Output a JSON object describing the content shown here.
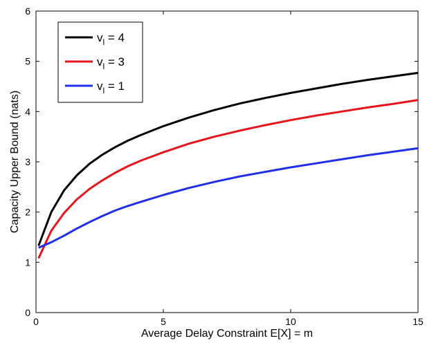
{
  "chart_data": {
    "type": "line",
    "title": "",
    "xlabel": "Average Delay Constraint E[X] = m",
    "ylabel": "Capacity Upper Bound (nats)",
    "xlim": [
      0,
      15
    ],
    "ylim": [
      0,
      6
    ],
    "xticks": [
      0,
      5,
      10,
      15
    ],
    "yticks": [
      0,
      1,
      2,
      3,
      4,
      5,
      6
    ],
    "grid": false,
    "legend_position": "top-left",
    "series": [
      {
        "name_main": "v",
        "name_sub": "l",
        "name_tail": " = 4",
        "color": "#000000",
        "x": [
          0.1,
          0.6,
          1.1,
          1.6,
          2.1,
          2.6,
          3.1,
          3.6,
          4.1,
          5,
          6,
          7,
          8,
          9,
          10,
          11,
          12,
          13,
          14,
          15
        ],
        "y": [
          1.33,
          2.0,
          2.43,
          2.73,
          2.96,
          3.14,
          3.29,
          3.42,
          3.53,
          3.71,
          3.88,
          4.03,
          4.16,
          4.27,
          4.37,
          4.46,
          4.55,
          4.63,
          4.7,
          4.77
        ]
      },
      {
        "name_main": "v",
        "name_sub": "l",
        "name_tail": " = 3",
        "color": "#e8141b",
        "x": [
          0.1,
          0.6,
          1.1,
          1.6,
          2.1,
          2.6,
          3.1,
          3.6,
          4.1,
          5,
          6,
          7,
          8,
          9,
          10,
          11,
          12,
          13,
          14,
          15
        ],
        "y": [
          1.08,
          1.63,
          1.98,
          2.25,
          2.46,
          2.63,
          2.78,
          2.91,
          3.02,
          3.19,
          3.36,
          3.5,
          3.62,
          3.73,
          3.83,
          3.92,
          4.0,
          4.08,
          4.15,
          4.23
        ]
      },
      {
        "name_main": "v",
        "name_sub": "l",
        "name_tail": " = 1",
        "color": "#1f2ee8",
        "x": [
          0.1,
          0.6,
          1.1,
          1.6,
          2.1,
          2.6,
          3.1,
          3.6,
          4.1,
          5,
          6,
          7,
          8,
          9,
          10,
          11,
          12,
          13,
          14,
          15
        ],
        "y": [
          1.29,
          1.4,
          1.53,
          1.67,
          1.8,
          1.92,
          2.03,
          2.12,
          2.2,
          2.34,
          2.48,
          2.6,
          2.71,
          2.8,
          2.89,
          2.97,
          3.05,
          3.13,
          3.2,
          3.27
        ]
      }
    ]
  }
}
